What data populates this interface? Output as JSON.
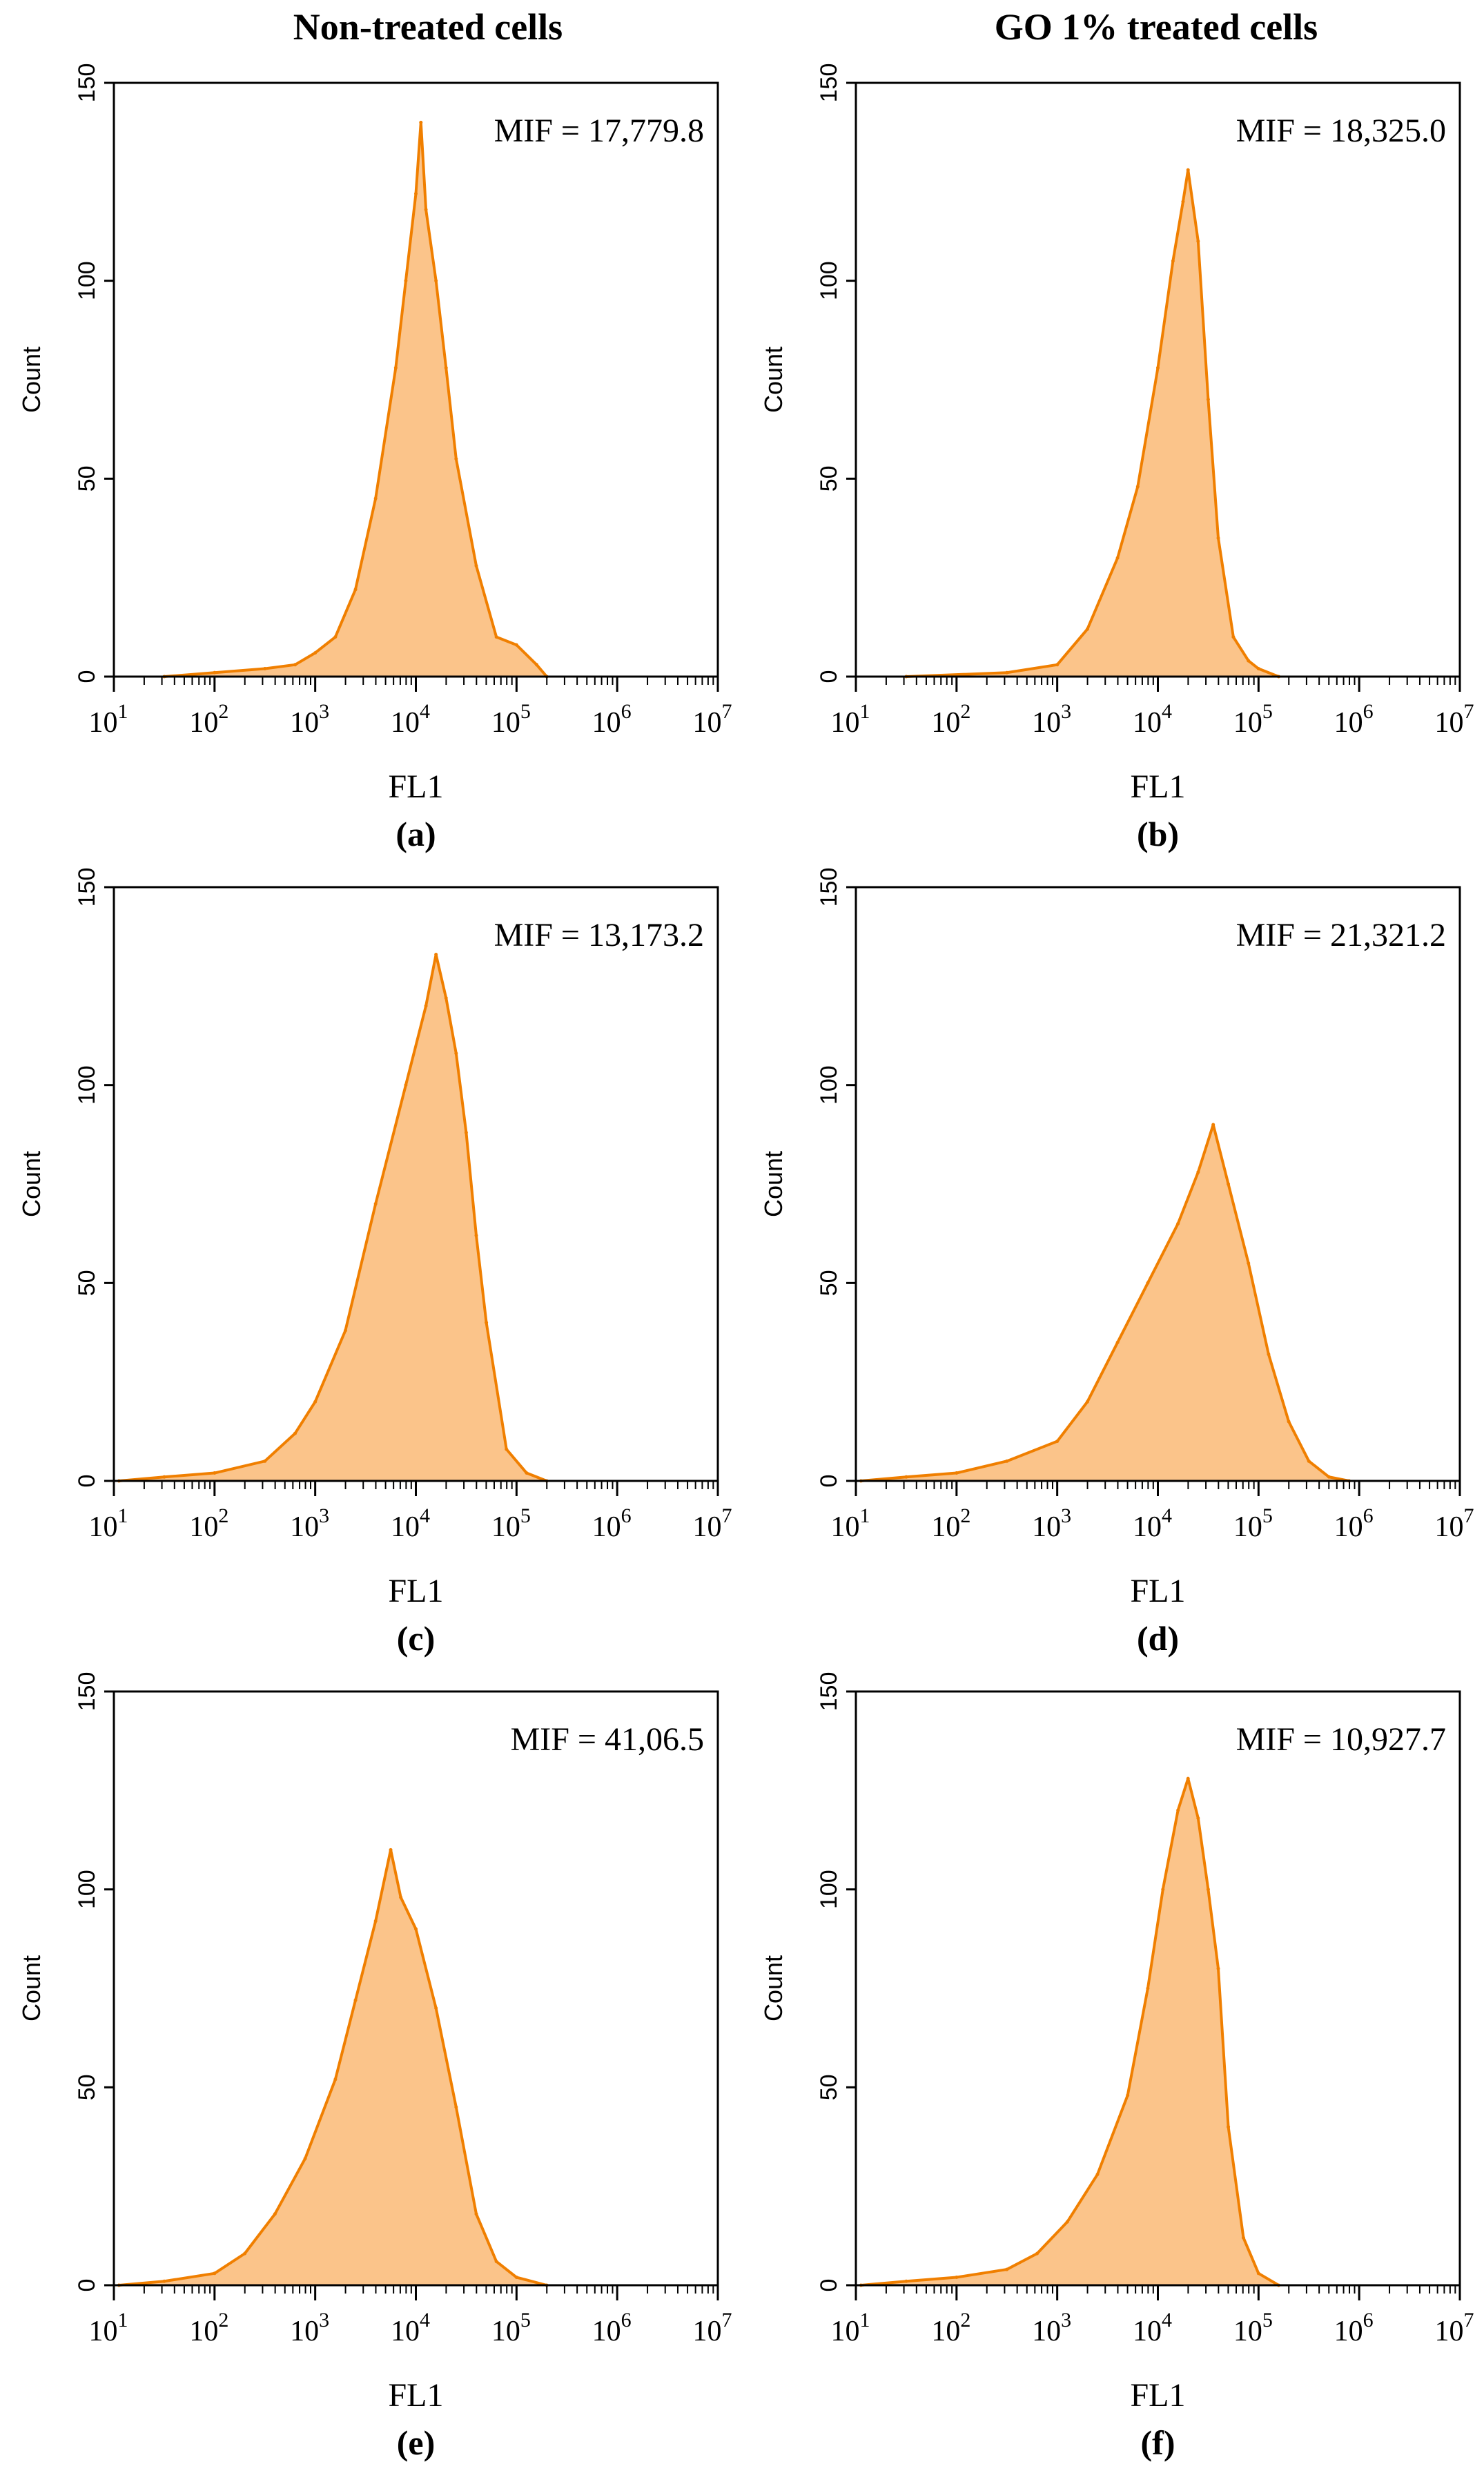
{
  "column_titles": {
    "left": "Non-treated cells",
    "right": "GO 1% treated cells"
  },
  "colors": {
    "line": "#f07f00",
    "fill": "#fbc48a",
    "axis": "#000000"
  },
  "chart_data": [
    {
      "type": "area",
      "panel": "(a)",
      "mif_text": "MIF = 17,779.8",
      "xlabel": "FL1",
      "ylabel": "Count",
      "x_scale": "log10",
      "xlim": [
        10,
        10000000
      ],
      "ylim": [
        0,
        150
      ],
      "x_ticks": [
        "10",
        "10",
        "10",
        "10",
        "10",
        "10",
        "10"
      ],
      "x_tick_exponents": [
        "1",
        "2",
        "3",
        "4",
        "5",
        "6",
        "7"
      ],
      "y_ticks": [
        "0",
        "50",
        "100",
        "150"
      ],
      "log_x": [
        1.5,
        2.0,
        2.5,
        2.8,
        3.0,
        3.2,
        3.4,
        3.6,
        3.8,
        3.9,
        4.0,
        4.05,
        4.1,
        4.2,
        4.3,
        4.4,
        4.6,
        4.8,
        5.0,
        5.2,
        5.3
      ],
      "y": [
        0,
        1,
        2,
        3,
        6,
        10,
        22,
        45,
        78,
        100,
        122,
        140,
        118,
        100,
        78,
        55,
        28,
        10,
        8,
        3,
        0
      ]
    },
    {
      "type": "area",
      "panel": "(b)",
      "mif_text": "MIF = 18,325.0",
      "xlabel": "FL1",
      "ylabel": "Count",
      "x_scale": "log10",
      "xlim": [
        10,
        10000000
      ],
      "ylim": [
        0,
        150
      ],
      "x_ticks": [
        "10",
        "10",
        "10",
        "10",
        "10",
        "10",
        "10"
      ],
      "x_tick_exponents": [
        "1",
        "2",
        "3",
        "4",
        "5",
        "6",
        "7"
      ],
      "y_ticks": [
        "0",
        "50",
        "100",
        "150"
      ],
      "log_x": [
        1.5,
        2.5,
        3.0,
        3.3,
        3.6,
        3.8,
        4.0,
        4.15,
        4.25,
        4.3,
        4.4,
        4.5,
        4.6,
        4.75,
        4.9,
        5.0,
        5.2
      ],
      "y": [
        0,
        1,
        3,
        12,
        30,
        48,
        78,
        105,
        120,
        128,
        110,
        70,
        35,
        10,
        4,
        2,
        0
      ]
    },
    {
      "type": "area",
      "panel": "(c)",
      "mif_text": "MIF = 13,173.2",
      "xlabel": "FL1",
      "ylabel": "Count",
      "x_scale": "log10",
      "xlim": [
        10,
        10000000
      ],
      "ylim": [
        0,
        150
      ],
      "x_ticks": [
        "10",
        "10",
        "10",
        "10",
        "10",
        "10",
        "10"
      ],
      "x_tick_exponents": [
        "1",
        "2",
        "3",
        "4",
        "5",
        "6",
        "7"
      ],
      "y_ticks": [
        "0",
        "50",
        "100",
        "150"
      ],
      "log_x": [
        1.05,
        1.5,
        2.0,
        2.5,
        2.8,
        3.0,
        3.3,
        3.6,
        3.9,
        4.1,
        4.2,
        4.3,
        4.4,
        4.5,
        4.6,
        4.7,
        4.9,
        5.1,
        5.3
      ],
      "y": [
        0,
        1,
        2,
        5,
        12,
        20,
        38,
        70,
        100,
        120,
        133,
        122,
        108,
        88,
        62,
        40,
        8,
        2,
        0
      ]
    },
    {
      "type": "area",
      "panel": "(d)",
      "mif_text": "MIF = 21,321.2",
      "xlabel": "FL1",
      "ylabel": "Count",
      "x_scale": "log10",
      "xlim": [
        10,
        10000000
      ],
      "ylim": [
        0,
        150
      ],
      "x_ticks": [
        "10",
        "10",
        "10",
        "10",
        "10",
        "10",
        "10"
      ],
      "x_tick_exponents": [
        "1",
        "2",
        "3",
        "4",
        "5",
        "6",
        "7"
      ],
      "y_ticks": [
        "0",
        "50",
        "100",
        "150"
      ],
      "log_x": [
        1.05,
        1.5,
        2.0,
        2.5,
        3.0,
        3.3,
        3.6,
        3.9,
        4.2,
        4.4,
        4.55,
        4.7,
        4.9,
        5.1,
        5.3,
        5.5,
        5.7,
        5.9
      ],
      "y": [
        0,
        1,
        2,
        5,
        10,
        20,
        35,
        50,
        65,
        78,
        90,
        75,
        55,
        32,
        15,
        5,
        1,
        0
      ]
    },
    {
      "type": "area",
      "panel": "(e)",
      "mif_text": "MIF = 41,06.5",
      "xlabel": "FL1",
      "ylabel": "Count",
      "x_scale": "log10",
      "xlim": [
        10,
        10000000
      ],
      "ylim": [
        0,
        150
      ],
      "x_ticks": [
        "10",
        "10",
        "10",
        "10",
        "10",
        "10",
        "10"
      ],
      "x_tick_exponents": [
        "1",
        "2",
        "3",
        "4",
        "5",
        "6",
        "7"
      ],
      "y_ticks": [
        "0",
        "50",
        "100",
        "150"
      ],
      "log_x": [
        1.05,
        1.5,
        2.0,
        2.3,
        2.6,
        2.9,
        3.2,
        3.4,
        3.6,
        3.75,
        3.85,
        4.0,
        4.2,
        4.4,
        4.6,
        4.8,
        5.0,
        5.3
      ],
      "y": [
        0,
        1,
        3,
        8,
        18,
        32,
        52,
        72,
        92,
        110,
        98,
        90,
        70,
        45,
        18,
        6,
        2,
        0
      ]
    },
    {
      "type": "area",
      "panel": "(f)",
      "mif_text": "MIF = 10,927.7",
      "xlabel": "FL1",
      "ylabel": "Count",
      "x_scale": "log10",
      "xlim": [
        10,
        10000000
      ],
      "ylim": [
        0,
        150
      ],
      "x_ticks": [
        "10",
        "10",
        "10",
        "10",
        "10",
        "10",
        "10"
      ],
      "x_tick_exponents": [
        "1",
        "2",
        "3",
        "4",
        "5",
        "6",
        "7"
      ],
      "y_ticks": [
        "0",
        "50",
        "100",
        "150"
      ],
      "log_x": [
        1.05,
        1.5,
        2.0,
        2.5,
        2.8,
        3.1,
        3.4,
        3.7,
        3.9,
        4.05,
        4.2,
        4.3,
        4.4,
        4.5,
        4.6,
        4.7,
        4.85,
        5.0,
        5.2
      ],
      "y": [
        0,
        1,
        2,
        4,
        8,
        16,
        28,
        48,
        75,
        100,
        120,
        128,
        118,
        100,
        80,
        40,
        12,
        3,
        0
      ]
    }
  ]
}
